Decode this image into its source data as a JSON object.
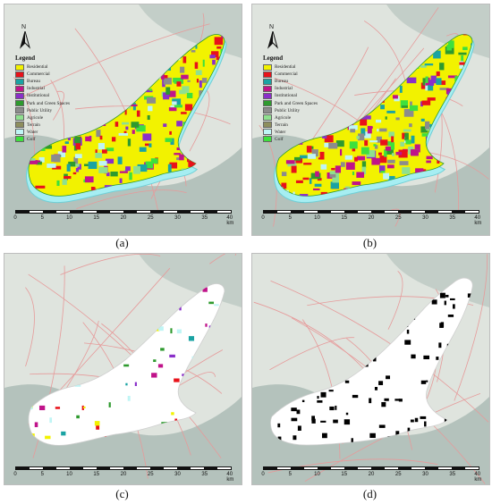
{
  "panels": [
    {
      "id": "a",
      "caption": "(a)",
      "variant": "full",
      "island_fill": "#f2f200"
    },
    {
      "id": "b",
      "caption": "(b)",
      "variant": "full",
      "island_fill": "#f2f200"
    },
    {
      "id": "c",
      "caption": "(c)",
      "variant": "sparse",
      "island_fill": "#ffffff"
    },
    {
      "id": "d",
      "caption": "(d)",
      "variant": "binary",
      "island_fill": "#ffffff"
    }
  ],
  "north_label": "N",
  "legend": {
    "title": "Legend",
    "items": [
      {
        "label": "Residential",
        "color": "#f2f200"
      },
      {
        "label": "Commercial",
        "color": "#e8121a"
      },
      {
        "label": "Bureau",
        "color": "#1aa3a3"
      },
      {
        "label": "Industrial",
        "color": "#c0138a"
      },
      {
        "label": "Institutional",
        "color": "#8a2fc9"
      },
      {
        "label": "Park and Green Spaces",
        "color": "#2e9a2e"
      },
      {
        "label": "Public Utility",
        "color": "#8c8c8c"
      },
      {
        "label": "Agricole",
        "color": "#8fe08f"
      },
      {
        "label": "Terrain",
        "color": "#8e8e5e"
      },
      {
        "label": "Water",
        "color": "#bff5f5"
      },
      {
        "label": "Golf",
        "color": "#3de03d"
      }
    ]
  },
  "scale": {
    "ticks": [
      "0",
      "5",
      "10",
      "15",
      "20",
      "25",
      "30",
      "35",
      "40 km"
    ]
  },
  "colors": {
    "water": "#8fa6a1",
    "land": "#dfe4de",
    "road": "#e69a9a",
    "outline_water": "#a6eef2"
  }
}
